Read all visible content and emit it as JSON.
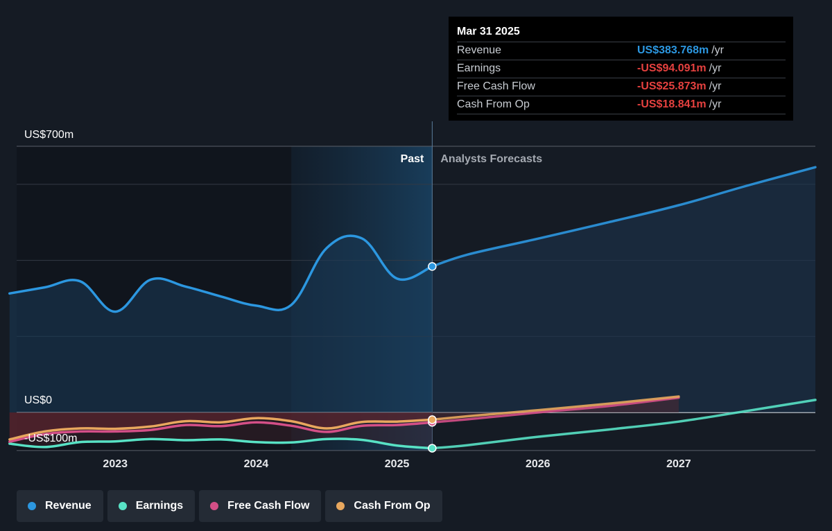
{
  "tooltip": {
    "date": "Mar 31 2025",
    "rows": [
      {
        "label": "Revenue",
        "value": "US$383.768m",
        "unit": "/yr",
        "color": "#2c97e0"
      },
      {
        "label": "Earnings",
        "value": "-US$94.091m",
        "unit": "/yr",
        "color": "#e5413f"
      },
      {
        "label": "Free Cash Flow",
        "value": "-US$25.873m",
        "unit": "/yr",
        "color": "#e5413f"
      },
      {
        "label": "Cash From Op",
        "value": "-US$18.841m",
        "unit": "/yr",
        "color": "#e5413f"
      }
    ]
  },
  "chart_data": {
    "type": "line",
    "y_axis_labels": [
      "US$700m",
      "US$0",
      "-US$100m"
    ],
    "ylim": [
      -100,
      700
    ],
    "xlim": [
      2022.3,
      2027.97
    ],
    "x_ticks": [
      {
        "x": 2023.0,
        "label": "2023"
      },
      {
        "x": 2024.0,
        "label": "2024"
      },
      {
        "x": 2025.0,
        "label": "2025"
      },
      {
        "x": 2026.0,
        "label": "2026"
      },
      {
        "x": 2027.0,
        "label": "2027"
      }
    ],
    "gridlines": [
      0,
      200,
      400,
      600,
      700
    ],
    "past_label": "Past",
    "forecast_label": "Analysts Forecasts",
    "current_x": 2025.25,
    "highlight_start_x": 2024.25,
    "colors": {
      "revenue": "#2c97e0",
      "earnings": "#58e2c5",
      "fcf": "#d44f87",
      "cfo": "#e8a75e"
    },
    "series": [
      {
        "name": "Revenue",
        "key": "revenue",
        "points": [
          [
            2022.25,
            313
          ],
          [
            2022.5,
            329
          ],
          [
            2022.75,
            345
          ],
          [
            2023.0,
            265
          ],
          [
            2023.25,
            349
          ],
          [
            2023.5,
            331
          ],
          [
            2023.75,
            305
          ],
          [
            2024.0,
            281
          ],
          [
            2024.25,
            283
          ],
          [
            2024.5,
            432
          ],
          [
            2024.75,
            458
          ],
          [
            2025.0,
            352
          ],
          [
            2025.25,
            384
          ]
        ],
        "forecast": [
          [
            2025.25,
            384
          ],
          [
            2025.5,
            415
          ],
          [
            2026.0,
            457
          ],
          [
            2026.5,
            500
          ],
          [
            2027.0,
            545
          ],
          [
            2027.5,
            598
          ],
          [
            2027.97,
            645
          ]
        ]
      },
      {
        "name": "Earnings",
        "key": "earnings",
        "points": [
          [
            2022.25,
            -82
          ],
          [
            2022.5,
            -91
          ],
          [
            2022.75,
            -78
          ],
          [
            2023.0,
            -76
          ],
          [
            2023.25,
            -70
          ],
          [
            2023.5,
            -73
          ],
          [
            2023.75,
            -71
          ],
          [
            2024.0,
            -78
          ],
          [
            2024.25,
            -79
          ],
          [
            2024.5,
            -70
          ],
          [
            2024.75,
            -72
          ],
          [
            2025.0,
            -87
          ],
          [
            2025.25,
            -94
          ]
        ],
        "forecast": [
          [
            2025.25,
            -94
          ],
          [
            2025.5,
            -86
          ],
          [
            2026.0,
            -64
          ],
          [
            2026.5,
            -45
          ],
          [
            2027.0,
            -24
          ],
          [
            2027.5,
            5
          ],
          [
            2027.97,
            33
          ]
        ]
      },
      {
        "name": "Free Cash Flow",
        "key": "fcf",
        "points": [
          [
            2022.25,
            -77
          ],
          [
            2022.5,
            -57
          ],
          [
            2022.75,
            -50
          ],
          [
            2023.0,
            -50
          ],
          [
            2023.25,
            -46
          ],
          [
            2023.5,
            -33
          ],
          [
            2023.75,
            -36
          ],
          [
            2024.0,
            -26
          ],
          [
            2024.25,
            -35
          ],
          [
            2024.5,
            -51
          ],
          [
            2024.75,
            -35
          ],
          [
            2025.0,
            -33
          ],
          [
            2025.25,
            -26
          ]
        ],
        "forecast": [
          [
            2025.25,
            -26
          ],
          [
            2025.5,
            -18
          ],
          [
            2026.0,
            0
          ],
          [
            2026.5,
            17
          ],
          [
            2027.0,
            39
          ]
        ]
      },
      {
        "name": "Cash From Op",
        "key": "cfo",
        "points": [
          [
            2022.25,
            -71
          ],
          [
            2022.5,
            -50
          ],
          [
            2022.75,
            -42
          ],
          [
            2023.0,
            -43
          ],
          [
            2023.25,
            -37
          ],
          [
            2023.5,
            -23
          ],
          [
            2023.75,
            -26
          ],
          [
            2024.0,
            -15
          ],
          [
            2024.25,
            -23
          ],
          [
            2024.5,
            -42
          ],
          [
            2024.75,
            -25
          ],
          [
            2025.0,
            -24
          ],
          [
            2025.25,
            -19
          ]
        ],
        "forecast": [
          [
            2025.25,
            -19
          ],
          [
            2025.5,
            -10
          ],
          [
            2026.0,
            6
          ],
          [
            2026.5,
            23
          ],
          [
            2027.0,
            42
          ]
        ]
      }
    ]
  },
  "legend": [
    {
      "label": "Revenue",
      "color": "#2c97e0"
    },
    {
      "label": "Earnings",
      "color": "#58e2c5"
    },
    {
      "label": "Free Cash Flow",
      "color": "#d44f87"
    },
    {
      "label": "Cash From Op",
      "color": "#e8a75e"
    }
  ]
}
